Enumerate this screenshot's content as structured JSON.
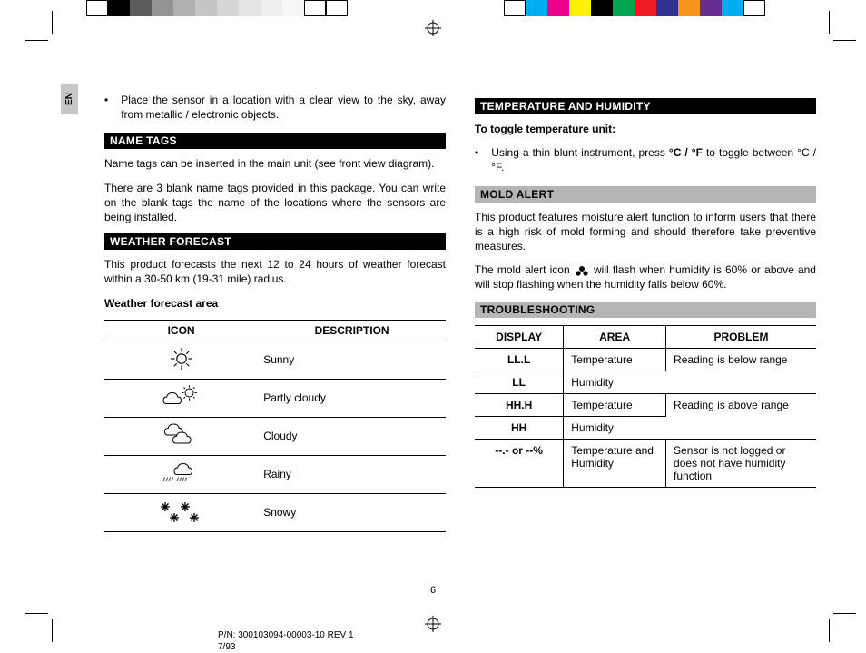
{
  "swatches_left": [
    "#ffffff",
    "#000000",
    "#5b5b5b",
    "#949494",
    "#b0b0b0",
    "#c5c5c5",
    "#d6d6d6",
    "#e3e3e3",
    "#eeeeee",
    "#f6f6f6",
    "#ffffff",
    "#ffffff"
  ],
  "swatches_right": [
    "#ffffff",
    "#00aeef",
    "#ec008c",
    "#fff200",
    "#000000",
    "#00a651",
    "#ed1c24",
    "#2e3192",
    "#f7941d",
    "#662d91",
    "#00adee",
    "#ffffff"
  ],
  "lang_tab": "EN",
  "left_col": {
    "opening_bullet": "Place the sensor in a location with a clear view to the sky, away from metallic / electronic objects.",
    "name_tags_header": "NAME TAGS",
    "name_tags_p1": "Name tags can be inserted in the main unit (see front view diagram).",
    "name_tags_p2": "There are 3 blank name tags provided in this package. You can write on the blank tags the name of the locations where the sensors are being installed.",
    "wx_header": "WEATHER FORECAST",
    "wx_intro": "This product forecasts the next 12 to 24 hours of weather forecast within a 30-50 km (19-31 mile) radius.",
    "wx_area_label": "Weather forecast area",
    "wx_table": {
      "headers": [
        "ICON",
        "DESCRIPTION"
      ],
      "rows": [
        {
          "icon": "sunny",
          "desc": "Sunny"
        },
        {
          "icon": "partly",
          "desc": "Partly cloudy"
        },
        {
          "icon": "cloudy",
          "desc": "Cloudy"
        },
        {
          "icon": "rainy",
          "desc": "Rainy"
        },
        {
          "icon": "snowy",
          "desc": "Snowy"
        }
      ]
    }
  },
  "right_col": {
    "temp_header": "TEMPERATURE AND HUMIDITY",
    "toggle_label": "To toggle temperature unit:",
    "toggle_bullet_pre": "Using a thin blunt instrument, press ",
    "toggle_bullet_bold": "°C / °F",
    "toggle_bullet_post": " to toggle between °C / °F.",
    "mold_header": "MOLD ALERT",
    "mold_p1": "This product features moisture alert function to inform users that there is a high risk of mold forming and should therefore take preventive measures.",
    "mold_p2_pre": "The mold alert icon ",
    "mold_p2_post": " will flash when humidity is 60% or above and will stop flashing when the humidity falls below 60%.",
    "trouble_header": "TROUBLESHOOTING",
    "trouble_table": {
      "headers": [
        "DISPLAY",
        "AREA",
        "PROBLEM"
      ],
      "cells": {
        "d1": "LL.L",
        "a1": "Temperature",
        "d2": "LL",
        "a2": "Humidity",
        "p12": "Reading is below range",
        "d3": "HH.H",
        "a3": "Temperature",
        "d4": "HH",
        "a4": "Humidity",
        "p34": "Reading is above range",
        "d5": "--.- or --%",
        "a5": "Temperature and Humidity",
        "p5": "Sensor is not logged or does not have humidity function"
      }
    }
  },
  "page_number": "6",
  "footer_line1": "P/N: 300103094-00003-10 REV 1",
  "footer_line2": "7/93"
}
